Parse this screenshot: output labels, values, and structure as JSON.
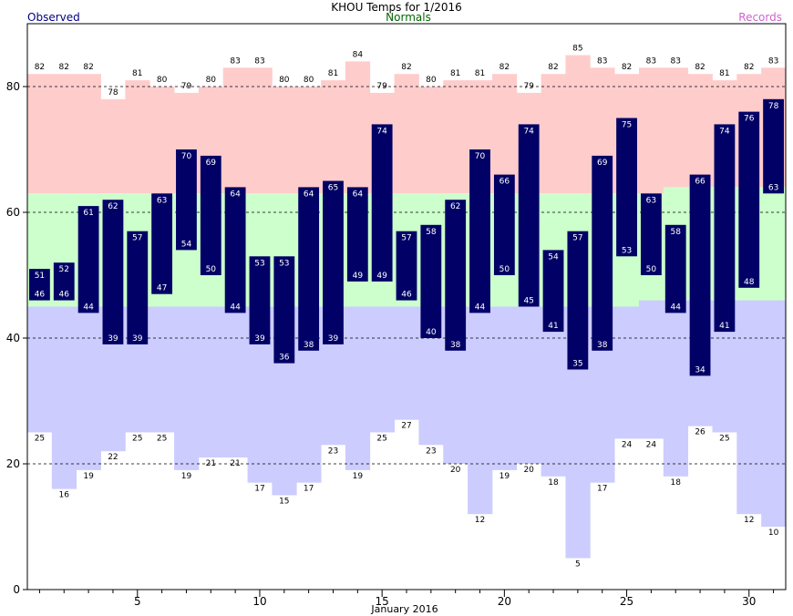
{
  "chart_data": {
    "type": "bar",
    "title": "KHOU Temps for  1/2016",
    "legend": {
      "observed": "Observed",
      "normals": "Normals",
      "records": "Records"
    },
    "xlabel": "January 2016",
    "ylabel": "",
    "xlim": [
      0.5,
      31.5
    ],
    "ylim": [
      0,
      90
    ],
    "x_ticks": [
      5,
      10,
      15,
      20,
      25,
      30
    ],
    "y_ticks": [
      0,
      20,
      40,
      60,
      80
    ],
    "gridlines_y": [
      20,
      40,
      60,
      80
    ],
    "days": [
      1,
      2,
      3,
      4,
      5,
      6,
      7,
      8,
      9,
      10,
      11,
      12,
      13,
      14,
      15,
      16,
      17,
      18,
      19,
      20,
      21,
      22,
      23,
      24,
      25,
      26,
      27,
      28,
      29,
      30,
      31
    ],
    "record_high": [
      82,
      82,
      82,
      78,
      81,
      80,
      79,
      80,
      83,
      83,
      80,
      80,
      81,
      84,
      79,
      82,
      80,
      81,
      81,
      82,
      79,
      82,
      85,
      83,
      82,
      83,
      83,
      82,
      81,
      82,
      83
    ],
    "record_low": [
      25,
      16,
      19,
      22,
      25,
      25,
      19,
      21,
      21,
      17,
      15,
      17,
      23,
      19,
      25,
      27,
      23,
      20,
      12,
      19,
      20,
      18,
      5,
      17,
      24,
      24,
      18,
      26,
      25,
      12,
      10
    ],
    "normal_high": [
      63,
      63,
      63,
      63,
      63,
      63,
      63,
      63,
      63,
      63,
      63,
      63,
      63,
      63,
      63,
      63,
      63,
      63,
      63,
      63,
      63,
      63,
      63,
      63,
      63,
      63,
      64,
      64,
      64,
      64,
      64
    ],
    "normal_low": [
      45,
      45,
      45,
      45,
      45,
      45,
      45,
      45,
      45,
      45,
      45,
      45,
      45,
      45,
      45,
      45,
      45,
      45,
      45,
      45,
      45,
      45,
      45,
      45,
      45,
      46,
      46,
      46,
      46,
      46,
      46
    ],
    "observed_high": [
      51,
      52,
      61,
      62,
      57,
      63,
      70,
      69,
      64,
      53,
      53,
      64,
      65,
      64,
      74,
      57,
      58,
      62,
      70,
      66,
      74,
      54,
      57,
      69,
      75,
      63,
      58,
      66,
      74,
      76,
      78
    ],
    "observed_low": [
      46,
      46,
      44,
      39,
      39,
      47,
      54,
      50,
      44,
      39,
      36,
      38,
      39,
      49,
      49,
      46,
      40,
      38,
      44,
      50,
      45,
      41,
      35,
      38,
      53,
      50,
      44,
      34,
      41,
      48,
      63
    ],
    "colors": {
      "record_high_band": "#ffcccc",
      "normal_band": "#ccffcc",
      "record_low_band": "#ccccff",
      "observed_bar": "#000066",
      "observed_label": "#000080",
      "normals_label": "#006600",
      "records_label": "#cc66cc"
    }
  }
}
